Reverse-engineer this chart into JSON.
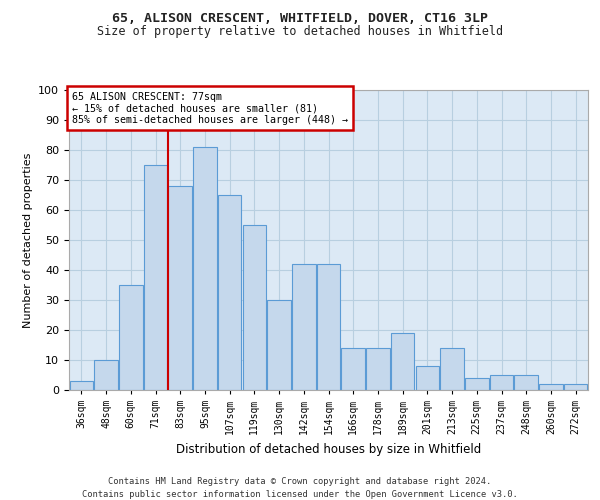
{
  "title1": "65, ALISON CRESCENT, WHITFIELD, DOVER, CT16 3LP",
  "title2": "Size of property relative to detached houses in Whitfield",
  "xlabel": "Distribution of detached houses by size in Whitfield",
  "ylabel": "Number of detached properties",
  "categories": [
    "36sqm",
    "48sqm",
    "60sqm",
    "71sqm",
    "83sqm",
    "95sqm",
    "107sqm",
    "119sqm",
    "130sqm",
    "142sqm",
    "154sqm",
    "166sqm",
    "178sqm",
    "189sqm",
    "201sqm",
    "213sqm",
    "225sqm",
    "237sqm",
    "248sqm",
    "260sqm",
    "272sqm"
  ],
  "bar_values": [
    3,
    10,
    35,
    75,
    68,
    81,
    65,
    55,
    30,
    42,
    42,
    14,
    14,
    19,
    8,
    14,
    4,
    5,
    5,
    2,
    2
  ],
  "bar_color": "#c5d8ec",
  "bar_edge_color": "#5b9bd5",
  "grid_color": "#b8cfe0",
  "background_color": "#dce9f5",
  "vline_position": 4,
  "vline_color": "#cc0000",
  "annotation_text": "65 ALISON CRESCENT: 77sqm\n← 15% of detached houses are smaller (81)\n85% of semi-detached houses are larger (448) →",
  "annotation_box_color": "#ffffff",
  "annotation_box_edge": "#cc0000",
  "footnote1": "Contains HM Land Registry data © Crown copyright and database right 2024.",
  "footnote2": "Contains public sector information licensed under the Open Government Licence v3.0.",
  "ylim": [
    0,
    100
  ]
}
